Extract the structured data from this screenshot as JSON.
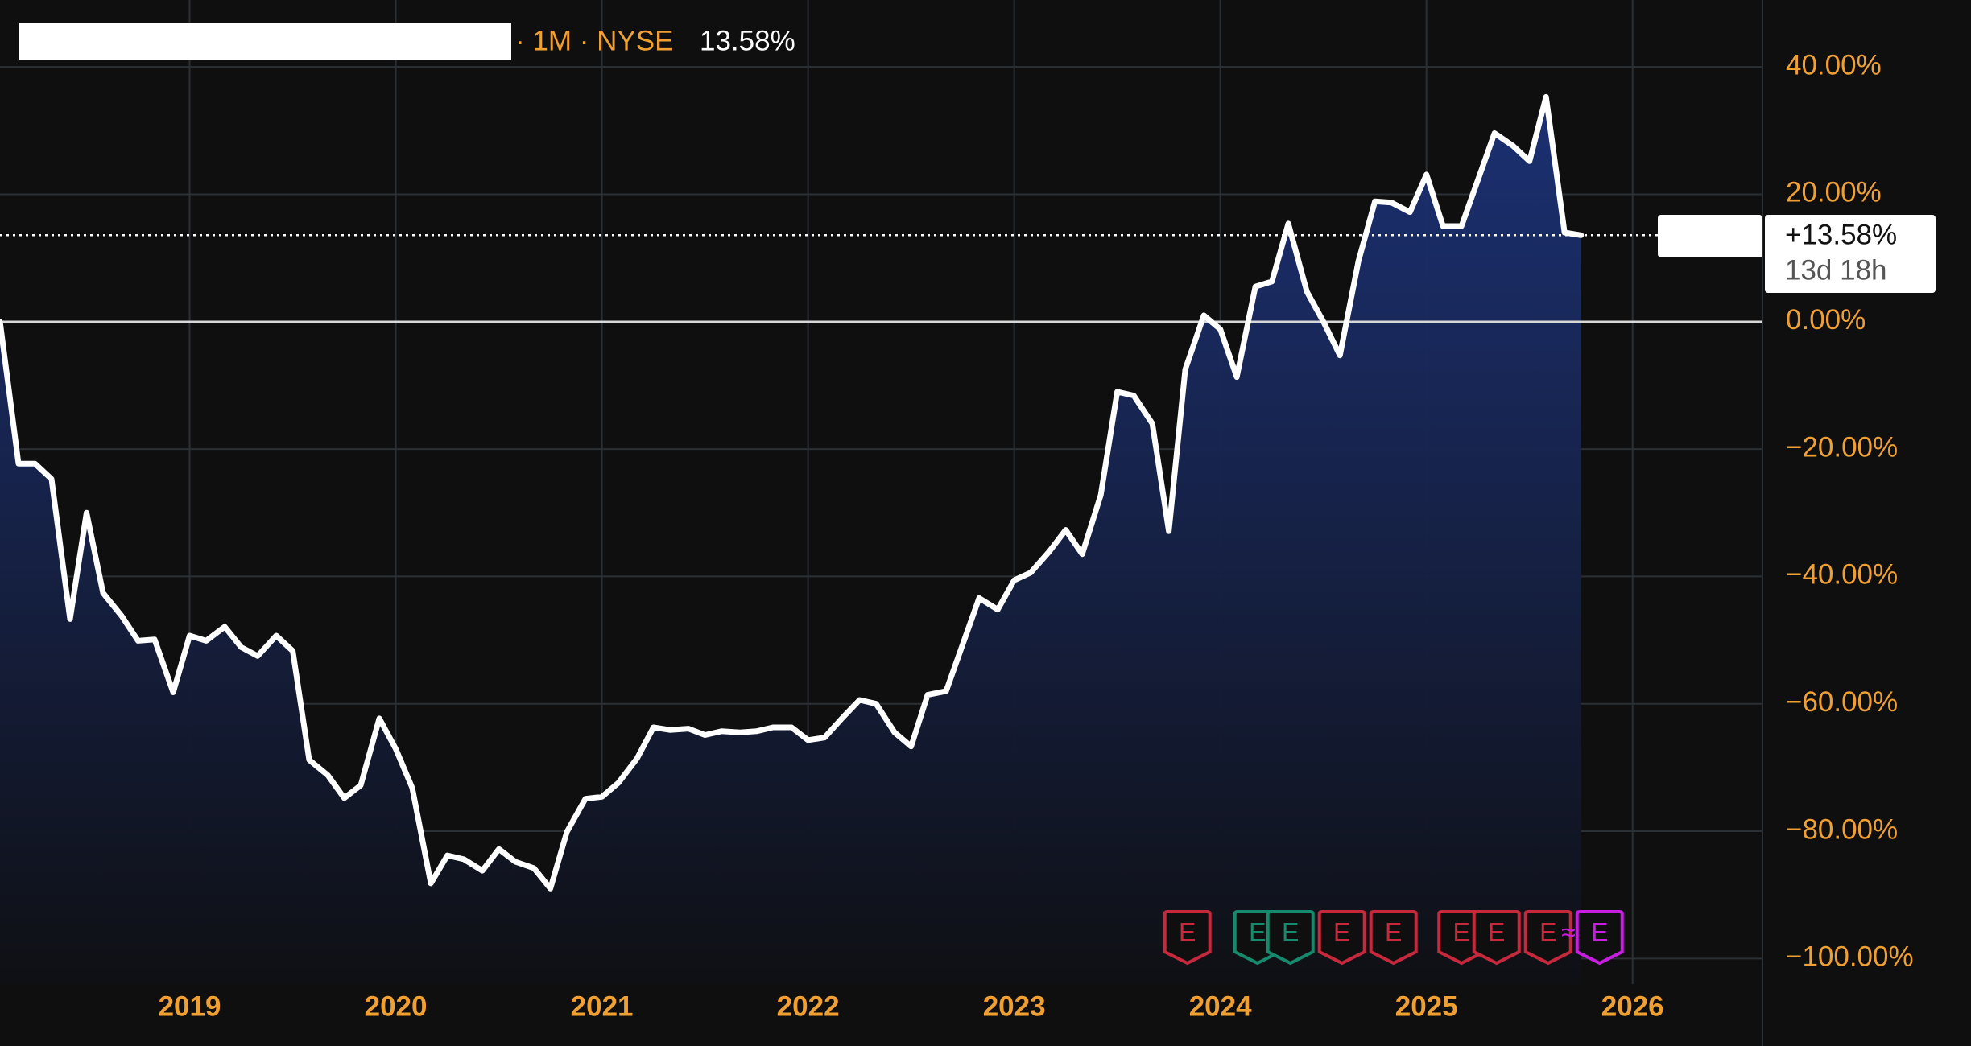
{
  "chart_data": {
    "type": "line",
    "header_suffix": "· 1M · NYSE",
    "header_value": "13.58%",
    "last_label": "+13.58%",
    "countdown": "13d 18h",
    "color": "#ffffff",
    "area_color": "#1c3278",
    "grid": true,
    "x": [
      2018.08,
      2018.17,
      2018.25,
      2018.33,
      2018.42,
      2018.5,
      2018.58,
      2018.67,
      2018.75,
      2018.83,
      2018.92,
      2019.0,
      2019.08,
      2019.17,
      2019.25,
      2019.33,
      2019.42,
      2019.5,
      2019.58,
      2019.67,
      2019.75,
      2019.83,
      2019.92,
      2020.0,
      2020.08,
      2020.17,
      2020.25,
      2020.33,
      2020.42,
      2020.5,
      2020.58,
      2020.67,
      2020.75,
      2020.83,
      2020.92,
      2021.0,
      2021.08,
      2021.17,
      2021.25,
      2021.33,
      2021.42,
      2021.5,
      2021.58,
      2021.67,
      2021.75,
      2021.83,
      2021.92,
      2022.0,
      2022.08,
      2022.17,
      2022.25,
      2022.33,
      2022.42,
      2022.5,
      2022.58,
      2022.67,
      2022.75,
      2022.83,
      2022.92,
      2023.0,
      2023.08,
      2023.17,
      2023.25,
      2023.33,
      2023.42,
      2023.5,
      2023.58,
      2023.67,
      2023.75,
      2023.83,
      2023.92,
      2024.0,
      2024.08,
      2024.17,
      2024.25,
      2024.33,
      2024.42,
      2024.5,
      2024.58,
      2024.67,
      2024.75,
      2024.83,
      2024.92,
      2025.0,
      2025.08,
      2025.17,
      2025.25,
      2025.33,
      2025.42,
      2025.5,
      2025.58,
      2025.67,
      2025.75
    ],
    "values": [
      0,
      -22.3,
      -22.3,
      -24.7,
      -46.7,
      -30,
      -42.6,
      -46.2,
      -50.1,
      -49.9,
      -58.2,
      -49.3,
      -50.1,
      -47.9,
      -51.1,
      -52.5,
      -49.3,
      -51.7,
      -68.8,
      -71.2,
      -74.8,
      -72.8,
      -62.3,
      -67.1,
      -73.2,
      -88.2,
      -83.8,
      -84.4,
      -86.2,
      -82.8,
      -84.8,
      -85.8,
      -89,
      -80.1,
      -74.9,
      -74.6,
      -72.4,
      -68.6,
      -63.7,
      -64.1,
      -63.9,
      -64.9,
      -64.3,
      -64.5,
      -64.3,
      -63.7,
      -63.7,
      -65.7,
      -65.3,
      -62.1,
      -59.4,
      -60,
      -64.5,
      -66.7,
      -58.6,
      -58,
      -50.7,
      -43.4,
      -45.2,
      -40.6,
      -39.4,
      -36.1,
      -32.7,
      -36.5,
      -27.2,
      -11,
      -11.6,
      -16,
      -32.9,
      -7.5,
      1,
      -1.2,
      -8.7,
      5.5,
      6.3,
      15.4,
      4.7,
      0,
      -5.3,
      9.5,
      18.9,
      18.7,
      17.2,
      23.1,
      15,
      15,
      22.3,
      29.6,
      27.6,
      25.2,
      35.3,
      14,
      13.58
    ],
    "xlim": [
      2018.08,
      2026.63
    ],
    "xticks": [
      2019,
      2020,
      2021,
      2022,
      2023,
      2024,
      2025,
      2026
    ],
    "ylim": [
      -104,
      50
    ],
    "yticks": [
      {
        "value": 40,
        "label": "40.00%"
      },
      {
        "value": 20,
        "label": "20.00%"
      },
      {
        "value": 0,
        "label": "0.00%"
      },
      {
        "value": -20,
        "label": "−20.00%"
      },
      {
        "value": -40,
        "label": "−40.00%"
      },
      {
        "value": -60,
        "label": "−60.00%"
      },
      {
        "value": -80,
        "label": "−80.00%"
      },
      {
        "value": -100,
        "label": "−100.00%"
      }
    ],
    "events": [
      {
        "x": 2023.84,
        "label": "E",
        "color": "#c8283c"
      },
      {
        "x": 2024.18,
        "label": "E",
        "color": "#168a6c"
      },
      {
        "x": 2024.34,
        "label": "E",
        "color": "#168a6c"
      },
      {
        "x": 2024.59,
        "label": "E",
        "color": "#c8283c"
      },
      {
        "x": 2024.84,
        "label": "E",
        "color": "#c8283c"
      },
      {
        "x": 2025.17,
        "label": "E",
        "color": "#c8283c"
      },
      {
        "x": 2025.34,
        "label": "E",
        "color": "#c8283c"
      },
      {
        "x": 2025.59,
        "label": "E",
        "color": "#c8283c"
      },
      {
        "x": 2025.84,
        "label": "E",
        "color": "#c81ee0",
        "prefix": "≈"
      }
    ]
  }
}
